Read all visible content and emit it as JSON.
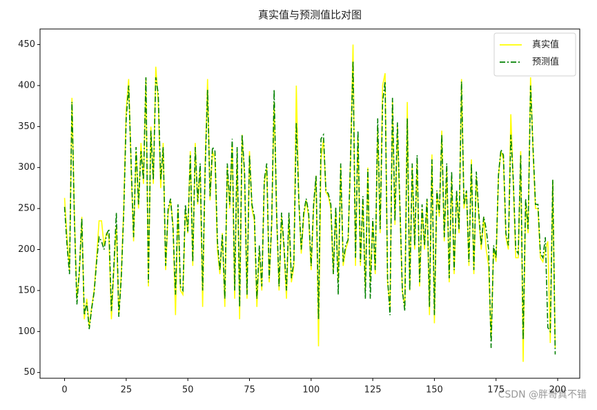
{
  "chart_data": {
    "type": "line",
    "title": "真实值与预测值比对图",
    "watermark": "CSDN @胖哥真不错",
    "x": [
      0,
      1,
      2,
      3,
      4,
      5,
      6,
      7,
      8,
      9,
      10,
      11,
      12,
      13,
      14,
      15,
      16,
      17,
      18,
      19,
      20,
      21,
      22,
      23,
      24,
      25,
      26,
      27,
      28,
      29,
      30,
      31,
      32,
      33,
      34,
      35,
      36,
      37,
      38,
      39,
      40,
      41,
      42,
      43,
      44,
      45,
      46,
      47,
      48,
      49,
      50,
      51,
      52,
      53,
      54,
      55,
      56,
      57,
      58,
      59,
      60,
      61,
      62,
      63,
      64,
      65,
      66,
      67,
      68,
      69,
      70,
      71,
      72,
      73,
      74,
      75,
      76,
      77,
      78,
      79,
      80,
      81,
      82,
      83,
      84,
      85,
      86,
      87,
      88,
      89,
      90,
      91,
      92,
      93,
      94,
      95,
      96,
      97,
      98,
      99,
      100,
      101,
      102,
      103,
      104,
      105,
      106,
      107,
      108,
      109,
      110,
      111,
      112,
      113,
      114,
      115,
      116,
      117,
      118,
      119,
      120,
      121,
      122,
      123,
      124,
      125,
      126,
      127,
      128,
      129,
      130,
      131,
      132,
      133,
      134,
      135,
      136,
      137,
      138,
      139,
      140,
      141,
      142,
      143,
      144,
      145,
      146,
      147,
      148,
      149,
      150,
      151,
      152,
      153,
      154,
      155,
      156,
      157,
      158,
      159,
      160,
      161,
      162,
      163,
      164,
      165,
      166,
      167,
      168,
      169,
      170,
      171,
      172,
      173,
      174,
      175,
      176,
      177,
      178,
      179,
      180,
      181,
      182,
      183,
      184,
      185,
      186,
      187,
      188,
      189,
      190,
      191,
      192,
      193,
      194,
      195,
      196,
      197,
      198,
      199
    ],
    "series": [
      {
        "name": "真实值",
        "color": "#ffff00",
        "dash": "solid",
        "values": [
          263,
          215,
          175,
          385,
          240,
          140,
          170,
          240,
          115,
          140,
          105,
          130,
          150,
          190,
          235,
          235,
          205,
          220,
          215,
          115,
          175,
          230,
          120,
          170,
          250,
          370,
          408,
          300,
          210,
          320,
          250,
          330,
          280,
          410,
          155,
          350,
          280,
          423,
          380,
          275,
          330,
          175,
          245,
          260,
          230,
          120,
          250,
          150,
          145,
          250,
          220,
          320,
          180,
          330,
          255,
          300,
          130,
          300,
          408,
          260,
          320,
          310,
          200,
          170,
          220,
          130,
          300,
          250,
          330,
          140,
          320,
          115,
          340,
          290,
          140,
          320,
          250,
          235,
          130,
          200,
          150,
          280,
          300,
          160,
          230,
          380,
          240,
          150,
          240,
          200,
          140,
          240,
          160,
          180,
          400,
          260,
          195,
          240,
          260,
          240,
          175,
          250,
          290,
          82,
          310,
          335,
          270,
          265,
          250,
          170,
          250,
          160,
          300,
          180,
          200,
          210,
          310,
          450,
          180,
          340,
          180,
          260,
          150,
          300,
          160,
          235,
          170,
          350,
          220,
          400,
          415,
          160,
          130,
          380,
          230,
          350,
          250,
          150,
          130,
          380,
          150,
          300,
          200,
          310,
          155,
          250,
          200,
          260,
          120,
          316,
          110,
          270,
          240,
          345,
          210,
          300,
          160,
          290,
          170,
          270,
          220,
          408,
          250,
          270,
          180,
          310,
          170,
          290,
          240,
          200,
          240,
          200,
          180,
          90,
          200,
          185,
          290,
          320,
          310,
          215,
          200,
          365,
          280,
          190,
          190,
          320,
          63,
          260,
          220,
          410,
          320,
          250,
          250,
          190,
          185,
          200,
          210,
          86,
          285,
          80
        ]
      },
      {
        "name": "预测值",
        "color": "#008000",
        "dash": "dashdot",
        "values": [
          252,
          205,
          170,
          380,
          235,
          133,
          175,
          238,
          120,
          135,
          103,
          128,
          148,
          185,
          215,
          210,
          200,
          218,
          225,
          125,
          180,
          245,
          118,
          165,
          245,
          360,
          400,
          305,
          215,
          325,
          255,
          320,
          285,
          410,
          160,
          345,
          285,
          410,
          390,
          285,
          325,
          180,
          250,
          262,
          225,
          145,
          255,
          155,
          150,
          255,
          222,
          315,
          185,
          325,
          258,
          305,
          150,
          295,
          395,
          265,
          325,
          320,
          210,
          175,
          218,
          140,
          305,
          255,
          335,
          150,
          325,
          130,
          340,
          295,
          145,
          315,
          255,
          240,
          140,
          205,
          155,
          285,
          305,
          165,
          232,
          395,
          245,
          155,
          245,
          205,
          150,
          245,
          165,
          185,
          355,
          262,
          200,
          245,
          262,
          245,
          180,
          255,
          290,
          115,
          335,
          340,
          272,
          268,
          255,
          170,
          252,
          145,
          305,
          185,
          205,
          212,
          312,
          430,
          190,
          345,
          185,
          265,
          140,
          298,
          140,
          238,
          175,
          360,
          225,
          380,
          405,
          165,
          120,
          385,
          235,
          355,
          255,
          150,
          125,
          360,
          150,
          305,
          205,
          315,
          160,
          255,
          205,
          262,
          130,
          310,
          120,
          272,
          245,
          340,
          215,
          305,
          165,
          295,
          175,
          272,
          225,
          405,
          255,
          272,
          185,
          305,
          175,
          295,
          245,
          205,
          240,
          225,
          200,
          80,
          205,
          190,
          292,
          322,
          315,
          220,
          205,
          340,
          285,
          200,
          195,
          315,
          90,
          262,
          225,
          400,
          325,
          255,
          255,
          195,
          190,
          215,
          105,
          100,
          285,
          72
        ]
      }
    ],
    "xlim": [
      -9.95,
      208.95
    ],
    "xticks": [
      0,
      25,
      50,
      75,
      100,
      125,
      150,
      175,
      200
    ],
    "ylim": [
      43,
      469
    ],
    "yticks": [
      50,
      100,
      150,
      200,
      250,
      300,
      350,
      400,
      450
    ],
    "legend": "upper right"
  }
}
